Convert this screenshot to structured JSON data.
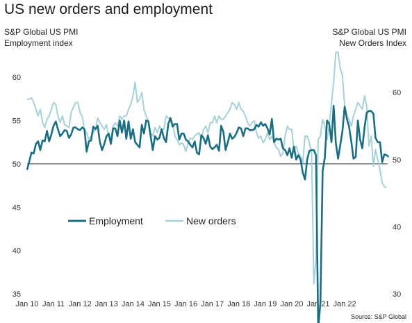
{
  "chart_data": {
    "type": "line",
    "title": "US new orders and employment",
    "left_axis_title": [
      "S&P Global US PMI",
      "Employment index"
    ],
    "right_axis_title": [
      "S&P Global US PMI",
      "New Orders Index"
    ],
    "source": "Source: S&P Global",
    "x_tick_labels": [
      "Jan 10",
      "Jan 11",
      "Jan 12",
      "Jan 13",
      "Jan 14",
      "Jan 15",
      "Jan 16",
      "Jan 17",
      "Jan 18",
      "Jan 19",
      "Jan 20",
      "Jan 21",
      "Jan 22"
    ],
    "left_axis": {
      "ylim": [
        35,
        62.5
      ],
      "ticks": [
        35,
        40,
        45,
        50,
        55,
        60
      ]
    },
    "right_axis": {
      "ylim": [
        30,
        65.5
      ],
      "ticks": [
        30,
        40,
        50,
        60
      ]
    },
    "reference_line": 50,
    "legend_placement": "center-left",
    "series": [
      {
        "name": "Employment",
        "axis": "left",
        "color": "#1b6e82",
        "start": "2010-01",
        "values": [
          49.3,
          50.3,
          51.3,
          51.2,
          52.3,
          52.6,
          51.6,
          52.7,
          52.6,
          53.8,
          52.6,
          53.4,
          54.4,
          54.9,
          54.0,
          53.2,
          53.5,
          53.9,
          53.8,
          53.0,
          53.4,
          54.2,
          54.2,
          54.0,
          53.9,
          54.2,
          54.0,
          51.4,
          52.6,
          52.7,
          54.3,
          54.0,
          54.4,
          52.5,
          51.6,
          52.3,
          53.2,
          53.5,
          52.3,
          54.1,
          54.1,
          53.2,
          55.0,
          53.6,
          55.0,
          52.9,
          54.9,
          52.9,
          54.0,
          52.5,
          52.2,
          51.9,
          54.5,
          53.5,
          55.0,
          54.9,
          53.2,
          51.6,
          53.2,
          52.8,
          53.0,
          54.0,
          53.0,
          52.5,
          54.6,
          55.3,
          54.3,
          54.6,
          54.6,
          52.8,
          53.5,
          53.5,
          52.8,
          52.6,
          52.2,
          51.9,
          52.6,
          51.3,
          51.1,
          53.3,
          53.0,
          52.3,
          53.3,
          52.0,
          51.7,
          51.9,
          52.2,
          51.5,
          54.4,
          53.7,
          51.6,
          52.5,
          53.5,
          52.9,
          53.1,
          53.6,
          54.2,
          54.1,
          53.2,
          54.1,
          54.1,
          53.9,
          53.9,
          54.0,
          54.5,
          54.3,
          54.8,
          54.4,
          54.6,
          54.1,
          53.4,
          55.2,
          52.5,
          52.9,
          52.8,
          52.9,
          51.8,
          51.6,
          51.0,
          51.8,
          50.7,
          52.0,
          50.5,
          51.0,
          50.5,
          49.0,
          48.2,
          50.5,
          51.5,
          51.6,
          51.6,
          51.0,
          31.0,
          34.0,
          49.2,
          50.7,
          55.0,
          54.6,
          52.5,
          56.7,
          52.4,
          50.6,
          52.2,
          53.8,
          56.6,
          55.2,
          54.3,
          52.6,
          50.6,
          50.8,
          55.0,
          52.8,
          51.8,
          54.2,
          55.9,
          56.1,
          56.1,
          55.8,
          53.0,
          52.5,
          52.5,
          50.2,
          51.1,
          51.0,
          50.8
        ]
      },
      {
        "name": "New orders",
        "axis": "right",
        "color": "#a6d1d7",
        "start": "2010-01",
        "values": [
          59.0,
          59.0,
          59.2,
          58.5,
          57.5,
          56.5,
          57.5,
          55.5,
          54.8,
          56.0,
          56.5,
          57.5,
          58.5,
          58.2,
          56.5,
          55.5,
          56.5,
          55.2,
          55.0,
          54.8,
          57.0,
          57.8,
          58.5,
          58.5,
          57.0,
          56.5,
          54.5,
          54.0,
          53.0,
          53.5,
          54.0,
          54.5,
          56.2,
          55.5,
          55.0,
          54.5,
          55.2,
          53.5,
          53.0,
          55.0,
          55.5,
          55.0,
          56.5,
          56.0,
          56.5,
          56.5,
          57.5,
          58.2,
          59.5,
          61.5,
          58.5,
          59.0,
          60.0,
          57.5,
          56.5,
          55.8,
          54.0,
          53.5,
          54.8,
          54.0,
          55.0,
          54.5,
          54.5,
          56.5,
          56.2,
          56.0,
          55.5,
          53.5,
          53.0,
          52.2,
          52.5,
          52.2,
          51.2,
          52.5,
          53.2,
          53.0,
          53.5,
          53.8,
          54.0,
          53.0,
          54.5,
          55.0,
          54.0,
          55.5,
          55.5,
          56.5,
          55.5,
          56.5,
          56.0,
          56.0,
          56.5,
          57.0,
          57.5,
          58.5,
          58.2,
          57.5,
          58.5,
          57.5,
          57.2,
          56.5,
          55.5,
          55.0,
          55.5,
          55.8,
          54.0,
          53.2,
          53.5,
          52.5,
          53.0,
          54.0,
          53.0,
          53.5,
          52.5,
          51.8,
          51.5,
          50.5,
          51.0,
          53.5,
          55.0,
          54.5,
          54.5,
          51.5,
          52.0,
          51.0,
          50.5,
          49.5,
          53.5,
          53.5,
          52.5,
          51.0,
          31.5,
          35.0,
          53.0,
          53.5,
          56.0,
          55.0,
          53.0,
          55.0,
          58.5,
          61.5,
          66.0,
          66.0,
          63.5,
          62.5,
          58.0,
          56.5,
          56.0,
          55.0,
          56.5,
          57.5,
          58.5,
          58.0,
          57.5,
          59.5,
          58.0,
          52.0,
          53.5,
          49.0,
          51.5,
          50.0,
          48.5,
          46.5,
          46.0,
          45.8
        ]
      }
    ]
  }
}
